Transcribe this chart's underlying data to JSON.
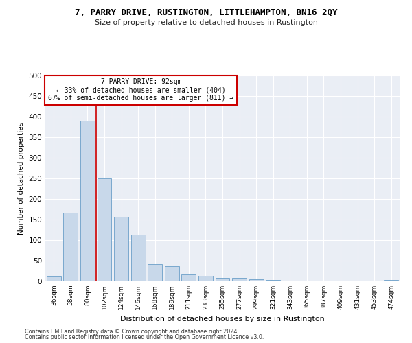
{
  "title": "7, PARRY DRIVE, RUSTINGTON, LITTLEHAMPTON, BN16 2QY",
  "subtitle": "Size of property relative to detached houses in Rustington",
  "xlabel": "Distribution of detached houses by size in Rustington",
  "ylabel": "Number of detached properties",
  "categories": [
    "36sqm",
    "58sqm",
    "80sqm",
    "102sqm",
    "124sqm",
    "146sqm",
    "168sqm",
    "189sqm",
    "211sqm",
    "233sqm",
    "255sqm",
    "277sqm",
    "299sqm",
    "321sqm",
    "343sqm",
    "365sqm",
    "387sqm",
    "409sqm",
    "431sqm",
    "453sqm",
    "474sqm"
  ],
  "values": [
    11,
    167,
    390,
    250,
    157,
    114,
    41,
    37,
    16,
    13,
    9,
    8,
    5,
    3,
    0,
    0,
    2,
    0,
    0,
    0,
    4
  ],
  "bar_color": "#c8d8ea",
  "bar_edge_color": "#6b9fc8",
  "vline_x": 2.5,
  "vline_color": "#cc0000",
  "annotation_text": "7 PARRY DRIVE: 92sqm\n← 33% of detached houses are smaller (404)\n67% of semi-detached houses are larger (811) →",
  "annotation_box_color": "#ffffff",
  "annotation_box_edge_color": "#cc0000",
  "ylim": [
    0,
    500
  ],
  "yticks": [
    0,
    50,
    100,
    150,
    200,
    250,
    300,
    350,
    400,
    450,
    500
  ],
  "background_color": "#eaeef5",
  "grid_color": "#ffffff",
  "footer_line1": "Contains HM Land Registry data © Crown copyright and database right 2024.",
  "footer_line2": "Contains public sector information licensed under the Open Government Licence v3.0."
}
